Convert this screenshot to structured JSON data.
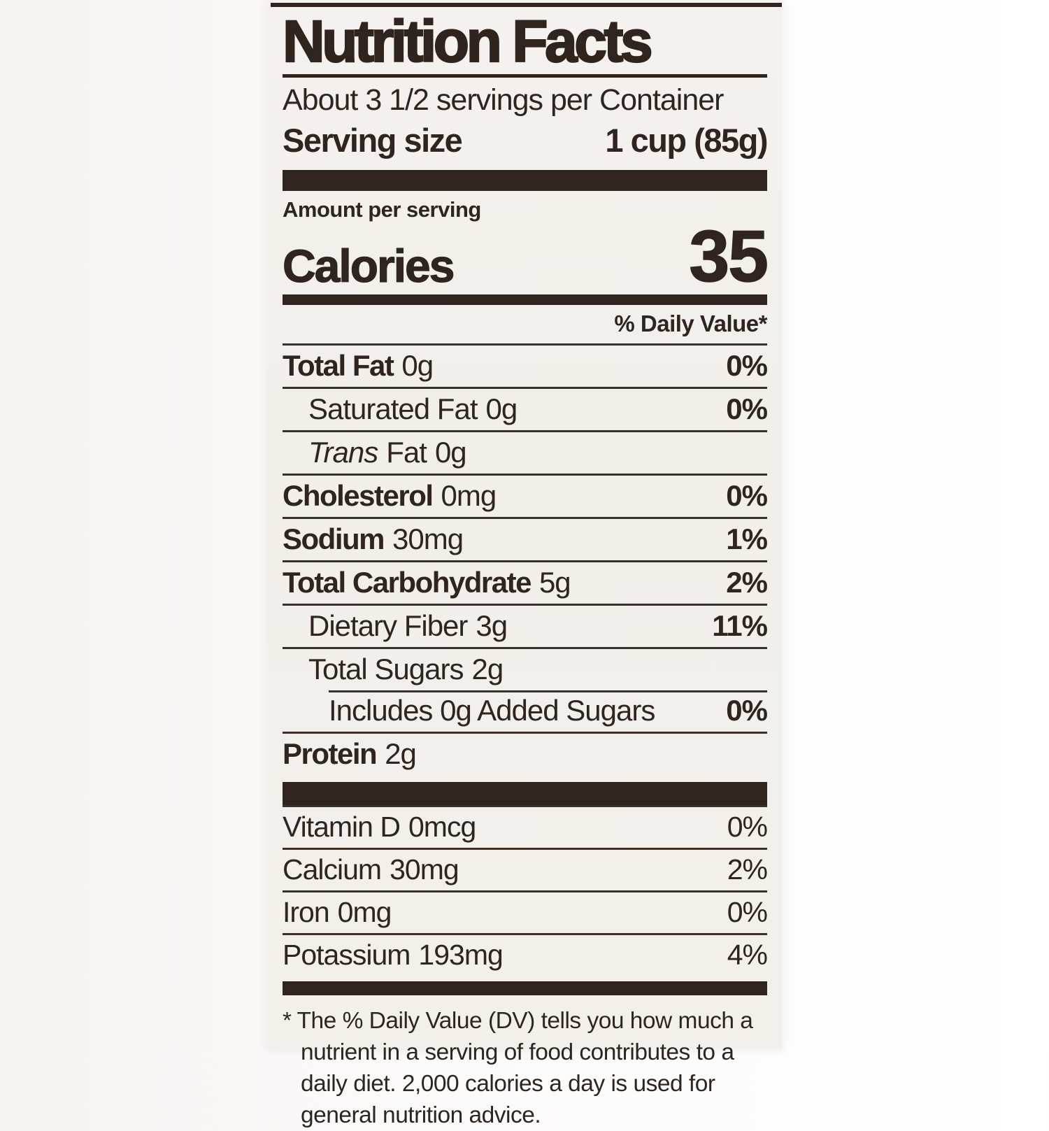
{
  "colors": {
    "ink": "#2f241e",
    "label_background": "#f2efeb",
    "page_background_left": "#f6f3f2",
    "page_background_right": "#ffffff"
  },
  "header": {
    "title": "Nutrition Facts",
    "servings_per_container": "About 3 1/2 servings per Container",
    "serving_size_label": "Serving size",
    "serving_size_value": "1 cup (85g)"
  },
  "calories": {
    "amount_per_serving_label": "Amount per serving",
    "label": "Calories",
    "value": "35"
  },
  "daily_value_header": "% Daily Value*",
  "nutrient_rows": [
    {
      "name": "Total Fat",
      "amount": "0g",
      "daily_value": "0%"
    },
    {
      "name": "Saturated Fat",
      "amount": "0g",
      "daily_value": "0%"
    },
    {
      "name_italic": "Trans",
      "name_rest": "Fat",
      "amount": "0g",
      "daily_value": ""
    },
    {
      "name": "Cholesterol",
      "amount": "0mg",
      "daily_value": "0%"
    },
    {
      "name": "Sodium",
      "amount": "30mg",
      "daily_value": "1%"
    },
    {
      "name": "Total Carbohydrate",
      "amount": "5g",
      "daily_value": "2%"
    },
    {
      "name": "Dietary Fiber",
      "amount": "3g",
      "daily_value": "11%"
    },
    {
      "name": "Total Sugars",
      "amount": "2g",
      "daily_value": ""
    },
    {
      "name": "Includes 0g Added Sugars",
      "amount": "",
      "daily_value": "0%"
    },
    {
      "name": "Protein",
      "amount": "2g",
      "daily_value": ""
    }
  ],
  "vitamin_rows": [
    {
      "name": "Vitamin D",
      "amount": "0mcg",
      "daily_value": "0%"
    },
    {
      "name": "Calcium",
      "amount": "30mg",
      "daily_value": "2%"
    },
    {
      "name": "Iron",
      "amount": "0mg",
      "daily_value": "0%"
    },
    {
      "name": "Potassium",
      "amount": "193mg",
      "daily_value": "4%"
    }
  ],
  "footnote": {
    "marker": "*",
    "text": "The % Daily Value (DV) tells you how much a nutrient in a serving of food contributes to a daily diet. 2,000 calories a day is used for general nutrition advice."
  }
}
